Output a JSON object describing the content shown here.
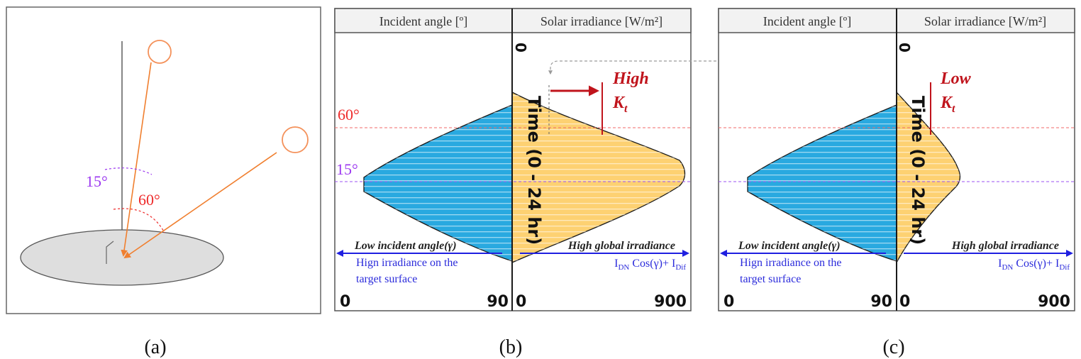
{
  "panel_a": {
    "caption": "(a)",
    "angle_small": "15°",
    "angle_large": "60°",
    "colors": {
      "sun": "#f4915a",
      "arrow": "#f07f2f",
      "angle_small": "#9b37f0",
      "angle_large": "#ee2a2a",
      "surface": "#dedede"
    }
  },
  "panel_b": {
    "caption": "(b)",
    "header_left": "Incident angle [º]",
    "header_right": "Solar irradiance [W/m²]",
    "angle_60": "60°",
    "angle_15": "15°",
    "time_label": "Time (0 - 24 hr)",
    "top_zero": "0",
    "kt_quality": "High",
    "kt_symbol": "K",
    "kt_sub": "t",
    "left_note_title": "Low incident angle(γ)",
    "left_note_line1": "Hign irradiance on the",
    "left_note_line2": "target surface",
    "right_note_title": "High global irradiance",
    "formula_a": "I",
    "formula_a_sub": "DN",
    "formula_mid": " Cos(γ)+ I",
    "formula_b_sub": "Dif",
    "axis_left_min": "0",
    "axis_left_max": "90",
    "axis_right_min": "0",
    "axis_right_max": "900"
  },
  "panel_c": {
    "caption": "(c)",
    "header_left": "Incident angle [º]",
    "header_right": "Solar irradiance [W/m²]",
    "time_label": "Time (0 - 24 hr)",
    "top_zero": "0",
    "kt_quality": "Low",
    "kt_symbol": "K",
    "kt_sub": "t",
    "left_note_title": "Low incident angle(γ)",
    "left_note_line1": "Hign irradiance on the",
    "left_note_line2": "target surface",
    "right_note_title": "High global irradiance",
    "formula_a": "I",
    "formula_a_sub": "DN",
    "formula_mid": " Cos(γ)+ I",
    "formula_b_sub": "Dif",
    "axis_left_min": "0",
    "axis_left_max": "90",
    "axis_right_min": "0",
    "axis_right_max": "900"
  },
  "colors": {
    "incident_fill": "#29a9e0",
    "irradiance_fill": "#fdd172",
    "header_fill": "#f2f2f2",
    "axis_arrow": "#1f1fe0",
    "note_blue": "#2b2bdb",
    "kt_red": "#c0141c",
    "guide_red": "#f06a6a",
    "guide_purple": "#9b52f0"
  }
}
